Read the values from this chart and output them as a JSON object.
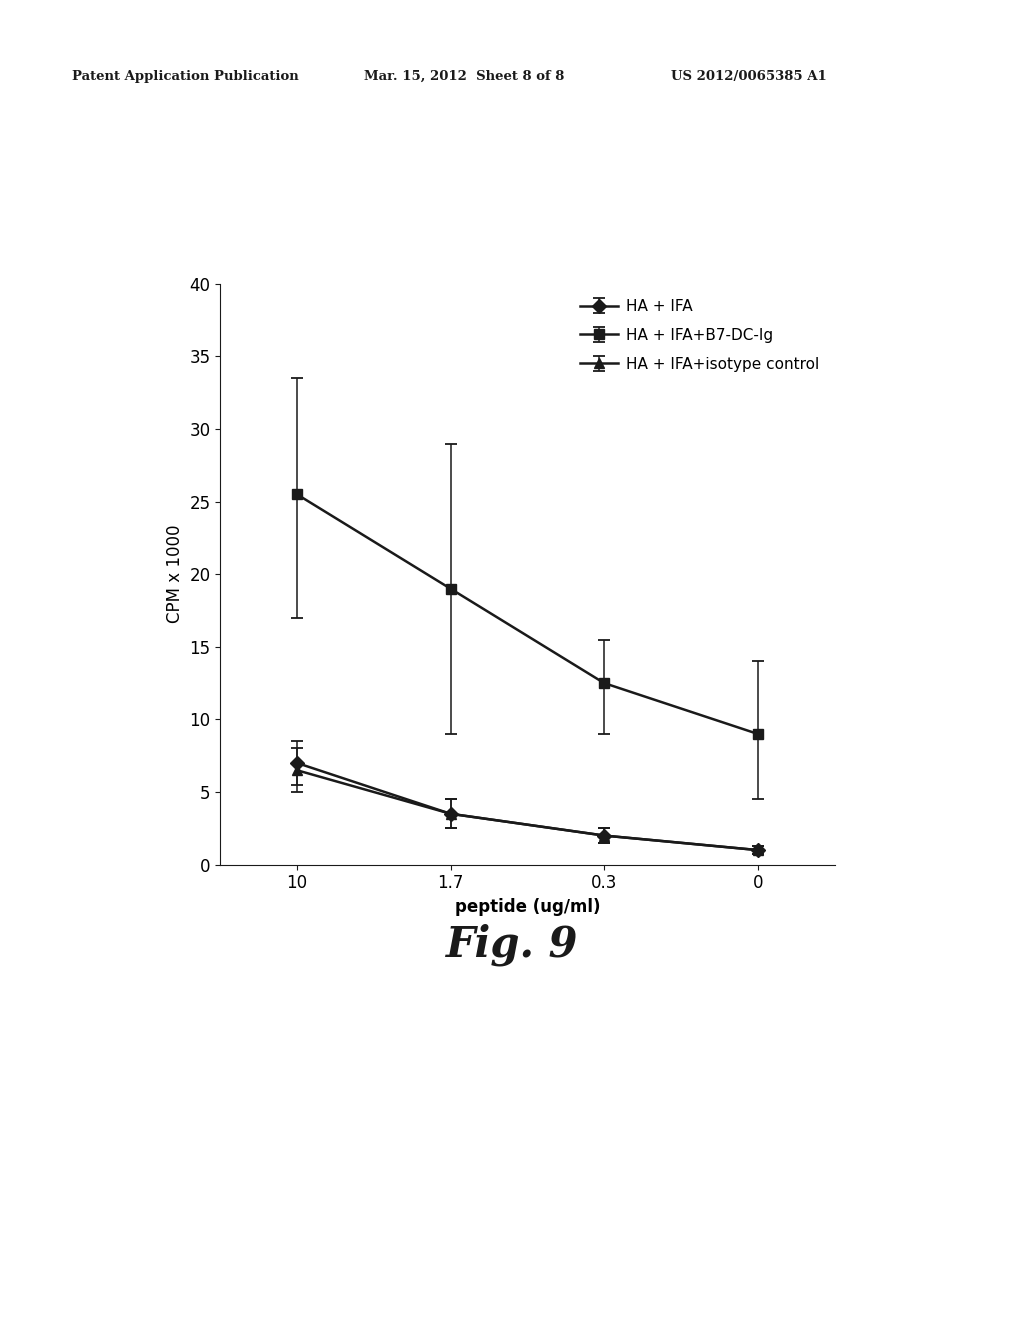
{
  "x_labels": [
    "10",
    "1.7",
    "0.3",
    "0"
  ],
  "x_positions": [
    0,
    1,
    2,
    3
  ],
  "series": [
    {
      "label": "HA + IFA",
      "y": [
        7.0,
        3.5,
        2.0,
        1.0
      ],
      "yerr_low": [
        1.5,
        1.0,
        0.5,
        0.3
      ],
      "yerr_high": [
        1.5,
        1.0,
        0.5,
        0.3
      ],
      "color": "#1a1a1a",
      "marker": "D",
      "markersize": 7,
      "linewidth": 1.8
    },
    {
      "label": "HA + IFA+B7-DC-Ig",
      "y": [
        25.5,
        19.0,
        12.5,
        9.0
      ],
      "yerr_low": [
        8.5,
        10.0,
        3.5,
        4.5
      ],
      "yerr_high": [
        8.0,
        10.0,
        3.0,
        5.0
      ],
      "color": "#1a1a1a",
      "marker": "s",
      "markersize": 7,
      "linewidth": 1.8
    },
    {
      "label": "HA + IFA+isotype control",
      "y": [
        6.5,
        3.5,
        2.0,
        1.0
      ],
      "yerr_low": [
        1.5,
        1.0,
        0.5,
        0.3
      ],
      "yerr_high": [
        1.5,
        1.0,
        0.5,
        0.3
      ],
      "color": "#1a1a1a",
      "marker": "^",
      "markersize": 7,
      "linewidth": 1.8
    }
  ],
  "xlabel": "peptide (ug/ml)",
  "ylabel": "CPM x 1000",
  "ylim": [
    0,
    40
  ],
  "yticks": [
    0,
    5,
    10,
    15,
    20,
    25,
    30,
    35,
    40
  ],
  "fig_caption": "Fig. 9",
  "header_left": "Patent Application Publication",
  "header_mid": "Mar. 15, 2012  Sheet 8 of 8",
  "header_right": "US 2012/0065385 A1",
  "background_color": "#ffffff",
  "axis_color": "#1a1a1a"
}
